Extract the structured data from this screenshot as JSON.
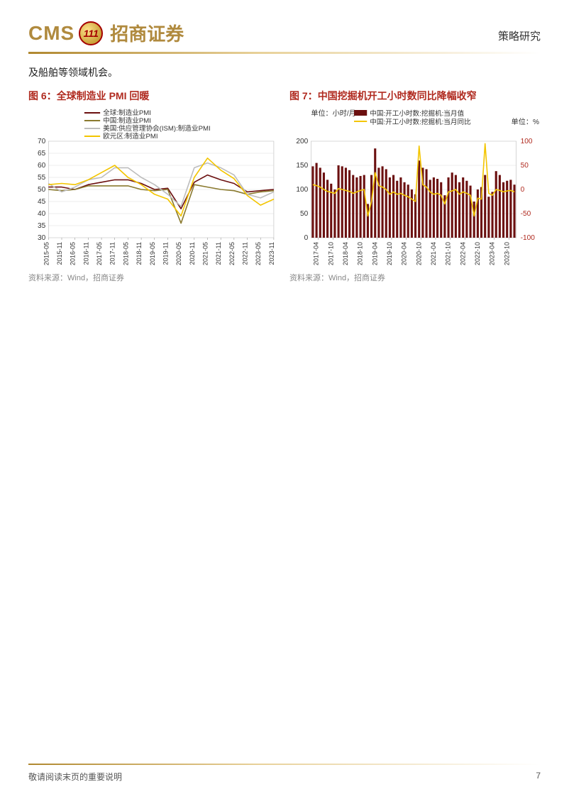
{
  "header": {
    "logo_cms": "CMS",
    "logo_inner": "111",
    "logo_cn": "招商证券",
    "right_label": "策略研究"
  },
  "body_text": "及船舶等领域机会。",
  "fig6": {
    "label": "图 6：",
    "title": "全球制造业 PMI 回暖",
    "type": "line",
    "background_color": "#ffffff",
    "grid_color": "#d9d9d9",
    "ylim": [
      30,
      70
    ],
    "ytick_step": 5,
    "label_fontsize": 10,
    "x_categories": [
      "2015-05",
      "2015-11",
      "2016-05",
      "2016-11",
      "2017-05",
      "2017-11",
      "2018-05",
      "2018-11",
      "2019-05",
      "2019-11",
      "2020-05",
      "2020-11",
      "2021-05",
      "2021-11",
      "2022-05",
      "2022-11",
      "2023-05",
      "2023-11"
    ],
    "series": [
      {
        "name": "全球:制造业PMI",
        "color": "#6b0f0f",
        "width": 1.6,
        "values": [
          51,
          51,
          50,
          52,
          53,
          54,
          54,
          52.5,
          50,
          50.5,
          42,
          53,
          56,
          54,
          52.5,
          49,
          49.5,
          50
        ]
      },
      {
        "name": "中国:制造业PMI",
        "color": "#8a7a2f",
        "width": 1.6,
        "values": [
          50,
          49.5,
          50,
          51.5,
          51.5,
          51.5,
          51.5,
          50,
          49.5,
          50,
          36,
          52,
          51,
          50,
          49.5,
          48,
          49,
          49.5
        ]
      },
      {
        "name": "美国:供应管理协会(ISM):制造业PMI",
        "color": "#bdbdbd",
        "width": 1.6,
        "values": [
          52.5,
          49,
          51,
          54,
          55,
          59,
          59,
          55,
          52,
          48,
          43,
          59,
          61,
          59,
          56,
          48,
          46.5,
          49
        ]
      },
      {
        "name": "欧元区:制造业PMI",
        "color": "#f3c500",
        "width": 1.6,
        "values": [
          52,
          52.5,
          52,
          54,
          57,
          60,
          55,
          52,
          48,
          46,
          39,
          55,
          63,
          58,
          54.5,
          47.5,
          43.5,
          46
        ]
      }
    ],
    "source": "资料来源：Wind，招商证券"
  },
  "fig7": {
    "label": "图 7：",
    "title": "中国挖掘机开工小时数同比降幅收窄",
    "type": "bar+line",
    "background_color": "#ffffff",
    "grid_color": "#d9d9d9",
    "left_unit": "单位：小时/月",
    "right_unit": "单位：%",
    "y1_lim": [
      0,
      200
    ],
    "y1_tick_step": 50,
    "y2_lim": [
      -100,
      100
    ],
    "y2_tick_step": 50,
    "x_categories": [
      "2017-04",
      "2017-10",
      "2018-04",
      "2018-10",
      "2019-04",
      "2019-10",
      "2020-04",
      "2020-10",
      "2021-04",
      "2021-10",
      "2022-04",
      "2022-10",
      "2023-04",
      "2023-10"
    ],
    "bars": {
      "name": "中国:开工小时数:挖掘机:当月值",
      "color": "#6b0f0f",
      "width": 3,
      "values": [
        148,
        155,
        145,
        135,
        120,
        112,
        100,
        150,
        148,
        145,
        140,
        130,
        125,
        128,
        130,
        70,
        130,
        185,
        145,
        148,
        142,
        125,
        130,
        118,
        125,
        115,
        110,
        100,
        90,
        160,
        145,
        142,
        120,
        125,
        122,
        115,
        88,
        125,
        135,
        130,
        115,
        125,
        118,
        108,
        75,
        100,
        105,
        130,
        85,
        95,
        138,
        130,
        115,
        118,
        120,
        110
      ]
    },
    "line": {
      "name": "中国:开工小时数:挖掘机:当月同比",
      "color": "#f3c500",
      "width": 1.6,
      "values": [
        10,
        8,
        5,
        0,
        -4,
        -6,
        -8,
        2,
        0,
        -2,
        -4,
        -8,
        -5,
        -2,
        0,
        -55,
        -25,
        35,
        8,
        5,
        0,
        -10,
        -5,
        -10,
        -8,
        -12,
        -15,
        -20,
        -25,
        90,
        10,
        5,
        -5,
        -10,
        -8,
        -12,
        -30,
        -5,
        -3,
        0,
        -10,
        -5,
        -8,
        -12,
        -55,
        -18,
        -20,
        95,
        -8,
        -12,
        0,
        -2,
        -5,
        -3,
        -2,
        -5
      ]
    },
    "source": "资料来源：Wind，招商证券"
  },
  "footer": {
    "left_text": "敬请阅读末页的重要说明",
    "page_number": "7"
  },
  "colors": {
    "gold": "#b08a3e",
    "dark_red": "#6b0f0f",
    "red_title": "#b02a1f"
  }
}
